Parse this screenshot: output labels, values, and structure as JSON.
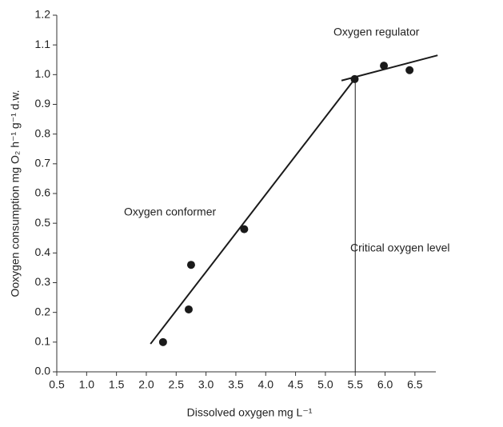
{
  "chart_data": {
    "type": "scatter",
    "xlabel": "Dissolved oxygen mg L⁻¹",
    "ylabel": "Ooxygen consumption mg O₂ h⁻¹ g⁻¹ d.w.",
    "xlim": [
      0.5,
      6.85
    ],
    "ylim": [
      0,
      1.2
    ],
    "xticks": [
      {
        "value": 0.5,
        "label": "0.5"
      },
      {
        "value": 1,
        "label": "1.0"
      },
      {
        "value": 1.5,
        "label": "1.5"
      },
      {
        "value": 2,
        "label": "2.0"
      },
      {
        "value": 2.5,
        "label": "2.5"
      },
      {
        "value": 3,
        "label": "3.0"
      },
      {
        "value": 3.5,
        "label": "3.5"
      },
      {
        "value": 4,
        "label": "4.0"
      },
      {
        "value": 4.5,
        "label": "4.5"
      },
      {
        "value": 5,
        "label": "5.0"
      },
      {
        "value": 5.5,
        "label": "5.5"
      },
      {
        "value": 6,
        "label": "6.0"
      },
      {
        "value": 6.5,
        "label": "6.5"
      }
    ],
    "yticks": [
      {
        "value": 0,
        "label": "0.0"
      },
      {
        "value": 0.1,
        "label": "0.1"
      },
      {
        "value": 0.2,
        "label": "0.2"
      },
      {
        "value": 0.3,
        "label": "0.3"
      },
      {
        "value": 0.4,
        "label": "0.4"
      },
      {
        "value": 0.5,
        "label": "0.5"
      },
      {
        "value": 0.6,
        "label": "0.6"
      },
      {
        "value": 0.7,
        "label": "0.7"
      },
      {
        "value": 0.8,
        "label": "0.8"
      },
      {
        "value": 0.9,
        "label": "0.9"
      },
      {
        "value": 1,
        "label": "1.0"
      },
      {
        "value": 1.1,
        "label": "1.1"
      },
      {
        "value": 1.2,
        "label": "1.2"
      }
    ],
    "color": "#1a1a1a",
    "series": [
      {
        "x": [
          2.28,
          2.71,
          2.75,
          3.64,
          5.49,
          5.98,
          6.41
        ],
        "values": [
          0.1,
          0.21,
          0.36,
          0.48,
          0.985,
          1.03,
          1.015
        ]
      }
    ],
    "lines": [
      {
        "x": [
          2.07,
          5.49
        ],
        "values": [
          0.094,
          0.985
        ]
      },
      {
        "x": [
          5.27,
          6.88
        ],
        "values": [
          0.98,
          1.065
        ]
      },
      {
        "x": [
          5.5,
          5.5
        ],
        "values": [
          0,
          0.985
        ]
      }
    ],
    "annotations": [
      "Oxygen regulator",
      "Oxygen conformer",
      "Critical oxygen level"
    ]
  }
}
